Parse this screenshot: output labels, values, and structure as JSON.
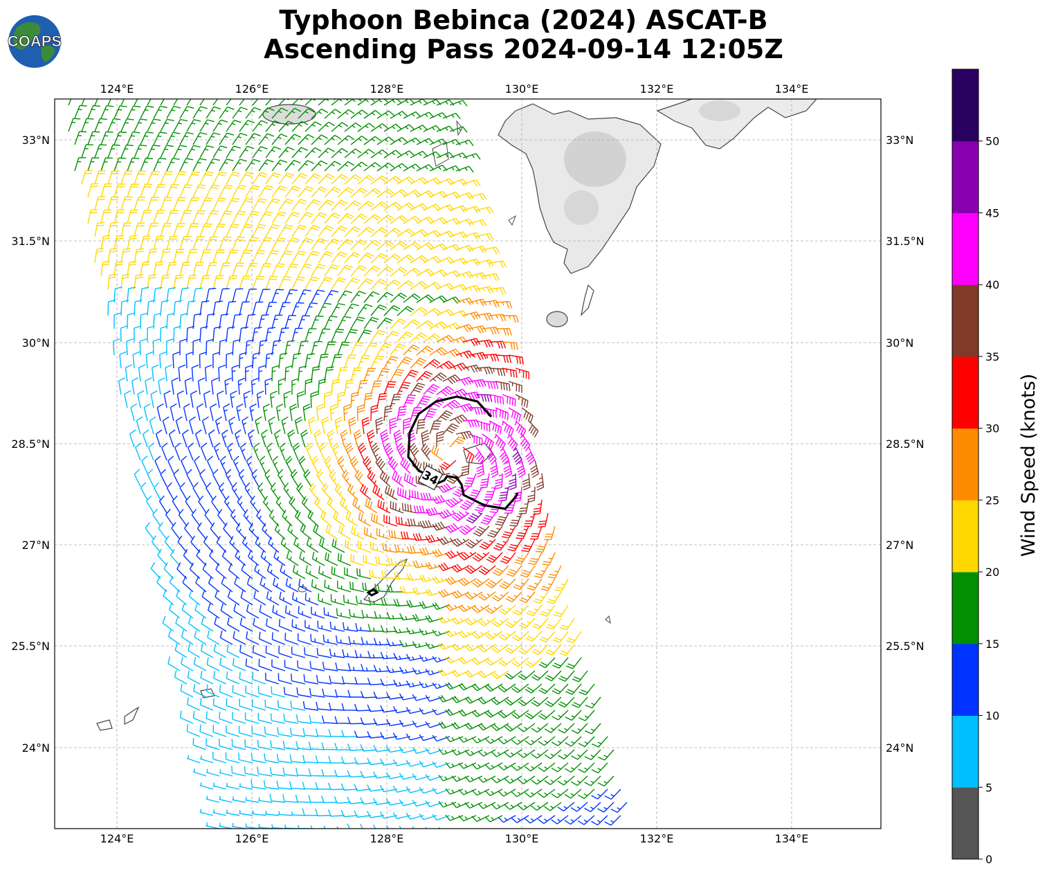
{
  "title_line1": "Typhoon Bebinca (2024) ASCAT-B",
  "title_line2": "Ascending Pass 2024-09-14 12:05Z",
  "logo_text": "COAPS",
  "map": {
    "lon_ticks": [
      "124°E",
      "126°E",
      "128°E",
      "130°E",
      "132°E",
      "134°E"
    ],
    "lat_ticks": [
      "33°N",
      "31.5°N",
      "30°N",
      "28.5°N",
      "27°N",
      "25.5°N",
      "24°N"
    ],
    "contour_label": "34"
  },
  "colorbar": {
    "label": "Wind Speed (knots)",
    "ticks": [
      "0",
      "5",
      "10",
      "15",
      "20",
      "25",
      "30",
      "35",
      "40",
      "45",
      "50"
    ],
    "bins": [
      {
        "range": "0-5",
        "color": "#555555"
      },
      {
        "range": "5-10",
        "color": "#00bfff"
      },
      {
        "range": "10-15",
        "color": "#0033ff"
      },
      {
        "range": "15-20",
        "color": "#009000"
      },
      {
        "range": "20-25",
        "color": "#ffd700"
      },
      {
        "range": "25-30",
        "color": "#ff8c00"
      },
      {
        "range": "30-35",
        "color": "#ff0000"
      },
      {
        "range": "35-40",
        "color": "#7f3b28"
      },
      {
        "range": "40-45",
        "color": "#ff00ff"
      },
      {
        "range": "45-50",
        "color": "#8800b0"
      },
      {
        "range": "50+",
        "color": "#2a0060"
      }
    ]
  },
  "storm": {
    "name": "Bebinca",
    "center_lon": 128.9,
    "center_lat": 28.4,
    "swath_east_edge": "approx 131.5°E"
  }
}
